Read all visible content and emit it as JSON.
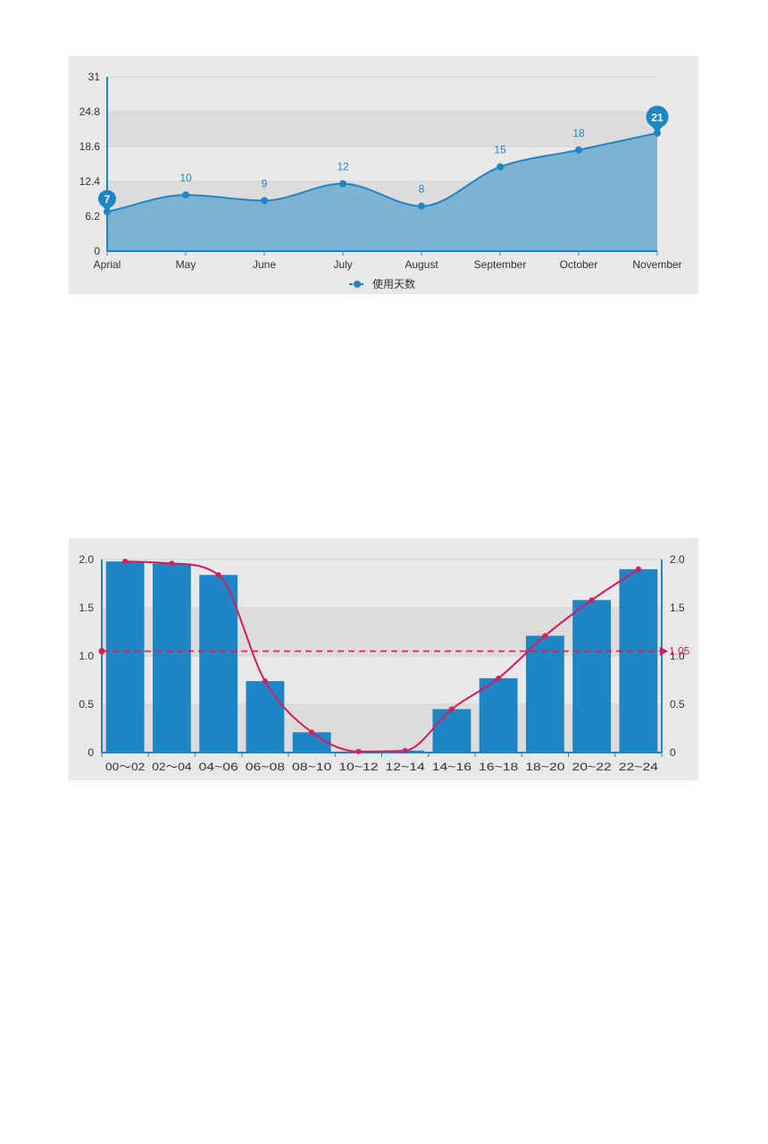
{
  "charts": {
    "line": {
      "legend_label": "使用天数"
    },
    "combo": {}
  },
  "colors": {
    "primary_blue": "#1f86c5",
    "area_fill": "#7eb2d3",
    "panel_bg": "#e9e9e9",
    "band_dark": "#dcdcdc",
    "line_red": "#d81b5a",
    "label_blue": "#1f86c5"
  },
  "chart_data": [
    {
      "type": "area",
      "categories": [
        "Aprial",
        "May",
        "June",
        "July",
        "August",
        "September",
        "October",
        "November"
      ],
      "series": [
        {
          "name": "使用天数",
          "values": [
            7,
            10,
            9,
            12,
            8,
            15,
            18,
            21
          ]
        }
      ],
      "yticks": [
        "0",
        "6.2",
        "12.4",
        "18.6",
        "24.8",
        "31"
      ],
      "ylim": [
        0,
        31
      ],
      "markers": {
        "min": 7,
        "max": 21
      },
      "legend_position": "bottom-center",
      "grid": true
    },
    {
      "type": "bar",
      "categories": [
        "00～02",
        "02～04",
        "04~06",
        "06~08",
        "08~10",
        "10~12",
        "12~14",
        "14~16",
        "16~18",
        "18~20",
        "20~22",
        "22~24"
      ],
      "series": [
        {
          "type": "bar",
          "values": [
            1.98,
            1.96,
            1.84,
            0.74,
            0.21,
            0.01,
            0.02,
            0.45,
            0.77,
            1.21,
            1.58,
            1.9
          ]
        },
        {
          "type": "line",
          "values": [
            1.98,
            1.96,
            1.84,
            0.74,
            0.21,
            0.01,
            0.02,
            0.45,
            0.77,
            1.21,
            1.58,
            1.9
          ]
        }
      ],
      "average_line": {
        "value": 1.05,
        "label": "1.05"
      },
      "yticks_left": [
        "0",
        "0.5",
        "1.0",
        "1.5",
        "2.0"
      ],
      "yticks_right": [
        "0",
        "0.5",
        "1.0",
        "1.5",
        "2.0"
      ],
      "ylim": [
        0,
        2.0
      ],
      "grid": true
    }
  ]
}
